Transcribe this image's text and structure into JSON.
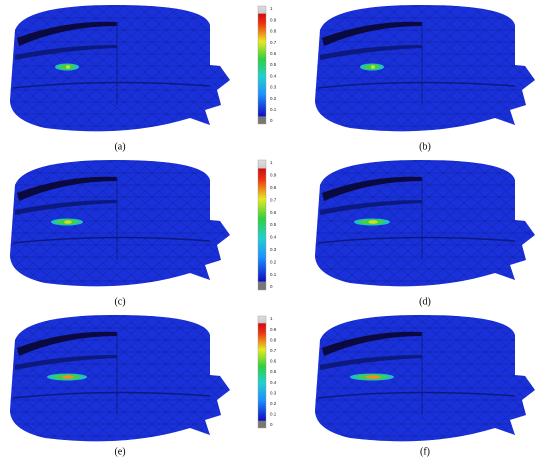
{
  "panels": [
    {
      "label": "(a)"
    },
    {
      "label": "(b)"
    },
    {
      "label": "(c)"
    },
    {
      "label": "(d)"
    },
    {
      "label": "(e)"
    },
    {
      "label": "(f)"
    }
  ],
  "colorbars": [
    {
      "ticks": [
        0,
        0.1,
        0.2,
        0.3,
        0.4,
        0.5,
        0.6,
        0.7,
        0.8,
        0.9,
        1
      ]
    },
    {
      "ticks": [
        0,
        0.1,
        0.2,
        0.3,
        0.4,
        0.5,
        0.6,
        0.7,
        0.8,
        0.9,
        1
      ]
    },
    {
      "ticks": [
        0,
        0.1,
        0.2,
        0.3,
        0.4,
        0.5,
        0.6,
        0.7,
        0.8,
        0.9,
        1
      ]
    }
  ]
}
